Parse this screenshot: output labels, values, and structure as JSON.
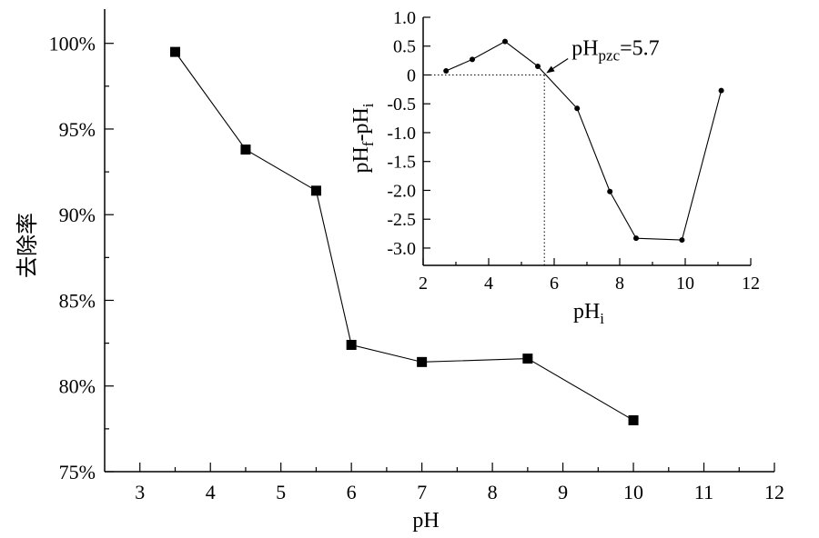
{
  "chart_data": [
    {
      "type": "line",
      "marker": "square",
      "xlabel": "pH",
      "ylabel": "去除率",
      "xlim": [
        2.5,
        12
      ],
      "ylim": [
        75,
        102
      ],
      "xticks": [
        "3",
        "4",
        "5",
        "6",
        "7",
        "8",
        "9",
        "10",
        "11",
        "12"
      ],
      "yticks": [
        "75%",
        "80%",
        "85%",
        "90%",
        "95%",
        "100%"
      ],
      "x": [
        3.5,
        4.5,
        5.5,
        6.0,
        7.0,
        8.5,
        10.0
      ],
      "y": [
        99.5,
        93.8,
        91.4,
        82.4,
        81.4,
        81.6,
        78.0
      ]
    },
    {
      "type": "line",
      "marker": "dot",
      "xlabel": "pH",
      "xlabel_sub": "i",
      "ylabel_parts": [
        "pH",
        "f",
        "-pH",
        "i"
      ],
      "xlim": [
        2,
        12
      ],
      "ylim": [
        -3.3,
        1.0
      ],
      "xticks": [
        "2",
        "4",
        "6",
        "8",
        "10",
        "12"
      ],
      "yticks": [
        "1.0",
        "0.5",
        "0",
        "-0.5",
        "-1.0",
        "-1.5",
        "-2.0",
        "-2.5",
        "-3.0"
      ],
      "x": [
        2.7,
        3.5,
        4.5,
        5.5,
        6.7,
        7.7,
        8.5,
        9.9,
        11.1
      ],
      "y": [
        0.07,
        0.27,
        0.58,
        0.15,
        -0.58,
        -2.02,
        -2.83,
        -2.86,
        -0.27
      ],
      "annotation": {
        "main": "pH",
        "sub": "pzc",
        "suffix": "=5.7",
        "x": 5.7,
        "y": 0
      }
    }
  ]
}
